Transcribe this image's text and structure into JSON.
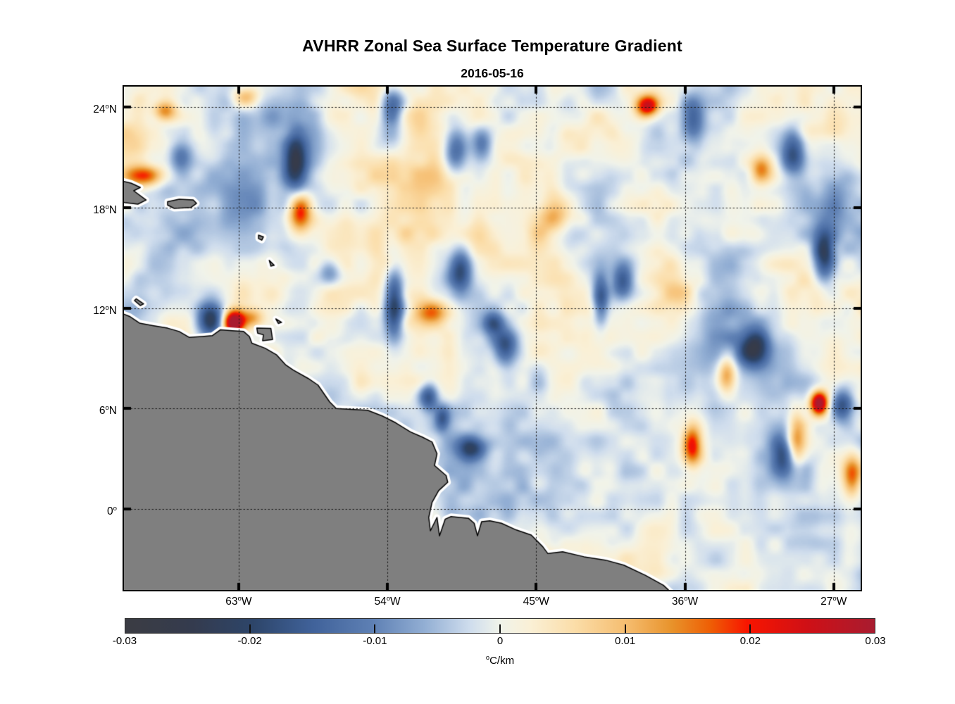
{
  "title": "AVHRR Zonal Sea Surface Temperature Gradient",
  "subtitle": "2016-05-16",
  "chart_data": {
    "type": "heatmap",
    "title": "AVHRR Zonal Sea Surface Temperature Gradient",
    "date": "2016-05-16",
    "variable": "zonal sea surface temperature gradient",
    "units": "°C/km",
    "lon_range": [
      -69.94,
      -25.37
    ],
    "lat_range": [
      25.22,
      -4.83
    ],
    "value_range": [
      -0.03,
      0.03
    ],
    "grid_style": "dotted",
    "x_ticks": [
      {
        "lon": -63,
        "label": "63",
        "hem": "W"
      },
      {
        "lon": -54,
        "label": "54",
        "hem": "W"
      },
      {
        "lon": -45,
        "label": "45",
        "hem": "W"
      },
      {
        "lon": -36,
        "label": "36",
        "hem": "W"
      },
      {
        "lon": -27,
        "label": "27",
        "hem": "W"
      }
    ],
    "y_ticks": [
      {
        "lat": 24,
        "label": "24",
        "hem": "N"
      },
      {
        "lat": 18,
        "label": "18",
        "hem": "N"
      },
      {
        "lat": 12,
        "label": "12",
        "hem": "N"
      },
      {
        "lat": 6,
        "label": "6",
        "hem": "N"
      },
      {
        "lat": 0,
        "label": "0",
        "hem": ""
      }
    ],
    "colorbar_ticks": [
      {
        "value": -0.03,
        "label": "-0.03"
      },
      {
        "value": -0.02,
        "label": "-0.02"
      },
      {
        "value": -0.01,
        "label": "-0.01"
      },
      {
        "value": 0,
        "label": "0"
      },
      {
        "value": 0.01,
        "label": "0.01"
      },
      {
        "value": 0.02,
        "label": "0.02"
      },
      {
        "value": 0.03,
        "label": "0.03"
      }
    ],
    "colorbar_units": {
      "sup": "o",
      "text": "C/km"
    },
    "colormap_stops": [
      [
        0.0,
        "#3b3c43"
      ],
      [
        0.09,
        "#343b4e"
      ],
      [
        0.17,
        "#2d4569"
      ],
      [
        0.25,
        "#40629a"
      ],
      [
        0.33,
        "#5e80b4"
      ],
      [
        0.4,
        "#93afd4"
      ],
      [
        0.46,
        "#cfdded"
      ],
      [
        0.5,
        "#f0f3ea"
      ],
      [
        0.54,
        "#faf0d6"
      ],
      [
        0.6,
        "#fbdda8"
      ],
      [
        0.67,
        "#f5bc6e"
      ],
      [
        0.73,
        "#e8922a"
      ],
      [
        0.78,
        "#ee5f05"
      ],
      [
        0.83,
        "#f81500"
      ],
      [
        0.91,
        "#cf1016"
      ],
      [
        1.0,
        "#a81c30"
      ]
    ],
    "land_color": "#7f7f7f",
    "coast_gap_color": "#ffffff",
    "coast_outline_color": "#000000",
    "seed": 20160516,
    "texture_octaves": [
      [
        170,
        0.0046
      ],
      [
        85,
        0.004
      ],
      [
        42,
        0.003
      ],
      [
        21,
        0.002
      ]
    ],
    "features": [
      {
        "lon": -63.3,
        "lat": 11.15,
        "sx": 0.45,
        "sy": 0.5,
        "amp": 0.035
      },
      {
        "lon": -64.7,
        "lat": 11.3,
        "sx": 0.55,
        "sy": 0.75,
        "amp": -0.024
      },
      {
        "lon": -62.2,
        "lat": 11.4,
        "sx": 0.5,
        "sy": 0.4,
        "amp": 0.012
      },
      {
        "lon": -53.6,
        "lat": 12.3,
        "sx": 0.42,
        "sy": 1.5,
        "amp": -0.021
      },
      {
        "lon": -51.4,
        "lat": 11.7,
        "sx": 0.7,
        "sy": 0.55,
        "amp": 0.014
      },
      {
        "lon": -49.6,
        "lat": 14.2,
        "sx": 0.5,
        "sy": 0.9,
        "amp": -0.018
      },
      {
        "lon": -46.9,
        "lat": 9.7,
        "sx": 0.55,
        "sy": 0.75,
        "amp": -0.017
      },
      {
        "lon": -47.6,
        "lat": 11.1,
        "sx": 0.45,
        "sy": 0.45,
        "amp": -0.013
      },
      {
        "lon": -48.9,
        "lat": 3.6,
        "sx": 0.65,
        "sy": 0.55,
        "amp": -0.021
      },
      {
        "lon": -51.5,
        "lat": 6.7,
        "sx": 0.4,
        "sy": 0.55,
        "amp": -0.017
      },
      {
        "lon": -50.7,
        "lat": 5.4,
        "sx": 0.3,
        "sy": 0.5,
        "amp": -0.012
      },
      {
        "lon": -41.1,
        "lat": 12.5,
        "sx": 0.33,
        "sy": 1.0,
        "amp": -0.016
      },
      {
        "lon": -39.8,
        "lat": 13.6,
        "sx": 0.45,
        "sy": 0.7,
        "amp": -0.014
      },
      {
        "lon": -59.3,
        "lat": 17.7,
        "sx": 0.5,
        "sy": 0.85,
        "amp": 0.022
      },
      {
        "lon": -59.6,
        "lat": 20.7,
        "sx": 0.45,
        "sy": 1.1,
        "amp": -0.018
      },
      {
        "lon": -62.6,
        "lat": 24.6,
        "sx": 0.6,
        "sy": 0.5,
        "amp": 0.015
      },
      {
        "lon": -68.9,
        "lat": 19.9,
        "sx": 0.8,
        "sy": 0.45,
        "amp": 0.02
      },
      {
        "lon": -53.7,
        "lat": 24.2,
        "sx": 0.5,
        "sy": 0.7,
        "amp": -0.015
      },
      {
        "lon": -53.8,
        "lat": 22.3,
        "sx": 0.6,
        "sy": 0.9,
        "amp": -0.01
      },
      {
        "lon": -49.9,
        "lat": 21.4,
        "sx": 0.55,
        "sy": 1.0,
        "amp": -0.018
      },
      {
        "lon": -48.3,
        "lat": 21.8,
        "sx": 0.45,
        "sy": 0.7,
        "amp": -0.012
      },
      {
        "lon": -38.3,
        "lat": 24.1,
        "sx": 0.5,
        "sy": 0.45,
        "amp": 0.027
      },
      {
        "lon": -35.6,
        "lat": 23.4,
        "sx": 0.5,
        "sy": 0.9,
        "amp": -0.015
      },
      {
        "lon": -29.5,
        "lat": 21.3,
        "sx": 0.5,
        "sy": 1.0,
        "amp": -0.019
      },
      {
        "lon": -31.4,
        "lat": 20.3,
        "sx": 0.45,
        "sy": 0.6,
        "amp": 0.015
      },
      {
        "lon": -27.6,
        "lat": 15.2,
        "sx": 0.45,
        "sy": 1.1,
        "amp": -0.021
      },
      {
        "lon": -31.8,
        "lat": 9.6,
        "sx": 0.6,
        "sy": 0.8,
        "amp": -0.02
      },
      {
        "lon": -33.5,
        "lat": 8.0,
        "sx": 0.4,
        "sy": 0.8,
        "amp": 0.015
      },
      {
        "lon": -27.9,
        "lat": 6.3,
        "sx": 0.38,
        "sy": 0.5,
        "amp": 0.032
      },
      {
        "lon": -26.5,
        "lat": 6.2,
        "sx": 0.5,
        "sy": 0.7,
        "amp": -0.019
      },
      {
        "lon": -35.6,
        "lat": 3.8,
        "sx": 0.4,
        "sy": 0.85,
        "amp": 0.021
      },
      {
        "lon": -30.1,
        "lat": 3.2,
        "sx": 0.5,
        "sy": 0.85,
        "amp": -0.015
      },
      {
        "lon": -29.3,
        "lat": 4.2,
        "sx": 0.4,
        "sy": 1.2,
        "amp": 0.015
      },
      {
        "lon": -25.9,
        "lat": 2.0,
        "sx": 0.4,
        "sy": 0.9,
        "amp": 0.017
      },
      {
        "lon": -57.5,
        "lat": 14.2,
        "sx": 0.5,
        "sy": 0.6,
        "amp": -0.012
      },
      {
        "lon": -66.5,
        "lat": 21.0,
        "sx": 0.5,
        "sy": 0.7,
        "amp": -0.012
      },
      {
        "lon": -67.5,
        "lat": 23.8,
        "sx": 0.5,
        "sy": 0.4,
        "amp": 0.013
      },
      {
        "lon": -44.0,
        "lat": 17.5,
        "sx": 0.8,
        "sy": 0.8,
        "amp": 0.009
      },
      {
        "lon": -36.5,
        "lat": 13.0,
        "sx": 0.9,
        "sy": 0.9,
        "amp": 0.008
      },
      {
        "lon": -60.0,
        "lat": 22.0,
        "sx": 4.0,
        "sy": 3.0,
        "amp": -0.003
      },
      {
        "lon": -33.0,
        "lat": 2.0,
        "sx": 5.0,
        "sy": 3.0,
        "amp": 0.0025
      },
      {
        "lon": -44.0,
        "lat": 8.0,
        "sx": 4.0,
        "sy": 3.0,
        "amp": 0.002
      }
    ],
    "land_polygons": [
      {
        "name": "south-america-mainland",
        "pts": [
          [
            -70.5,
            11.85
          ],
          [
            -69.6,
            11.5
          ],
          [
            -69.0,
            11.1
          ],
          [
            -68.2,
            10.95
          ],
          [
            -67.3,
            10.8
          ],
          [
            -66.6,
            10.6
          ],
          [
            -66.0,
            10.25
          ],
          [
            -65.2,
            10.3
          ],
          [
            -64.6,
            10.35
          ],
          [
            -64.1,
            10.7
          ],
          [
            -63.4,
            10.65
          ],
          [
            -62.7,
            10.6
          ],
          [
            -62.35,
            10.3
          ],
          [
            -62.2,
            9.9
          ],
          [
            -61.4,
            9.6
          ],
          [
            -60.7,
            9.2
          ],
          [
            -60.15,
            8.6
          ],
          [
            -59.7,
            8.3
          ],
          [
            -58.8,
            7.8
          ],
          [
            -58.2,
            7.4
          ],
          [
            -57.5,
            6.4
          ],
          [
            -57.1,
            6.0
          ],
          [
            -56.2,
            5.95
          ],
          [
            -55.2,
            5.9
          ],
          [
            -54.3,
            5.55
          ],
          [
            -53.5,
            5.15
          ],
          [
            -52.6,
            4.6
          ],
          [
            -51.9,
            4.3
          ],
          [
            -51.3,
            4.0
          ],
          [
            -51.0,
            3.3
          ],
          [
            -51.15,
            2.6
          ],
          [
            -50.45,
            2.0
          ],
          [
            -50.35,
            1.6
          ],
          [
            -50.9,
            1.1
          ],
          [
            -51.3,
            0.4
          ],
          [
            -51.5,
            -0.5
          ],
          [
            -51.4,
            -1.3
          ],
          [
            -51.0,
            -0.5
          ],
          [
            -50.85,
            -1.6
          ],
          [
            -50.5,
            -0.6
          ],
          [
            -50.15,
            -0.45
          ],
          [
            -49.1,
            -0.55
          ],
          [
            -48.75,
            -0.85
          ],
          [
            -48.55,
            -1.6
          ],
          [
            -48.3,
            -0.75
          ],
          [
            -47.8,
            -0.7
          ],
          [
            -47.1,
            -0.85
          ],
          [
            -46.2,
            -1.25
          ],
          [
            -45.3,
            -1.55
          ],
          [
            -44.6,
            -2.25
          ],
          [
            -44.3,
            -2.65
          ],
          [
            -43.4,
            -2.55
          ],
          [
            -42.1,
            -2.85
          ],
          [
            -40.8,
            -3.05
          ],
          [
            -39.7,
            -3.35
          ],
          [
            -38.4,
            -3.95
          ],
          [
            -37.3,
            -4.55
          ],
          [
            -36.6,
            -5.2
          ],
          [
            -71.0,
            -5.4
          ]
        ]
      },
      {
        "name": "hispaniola-east",
        "pts": [
          [
            -70.5,
            19.7
          ],
          [
            -69.5,
            19.45
          ],
          [
            -68.95,
            19.2
          ],
          [
            -69.35,
            19.0
          ],
          [
            -68.6,
            18.45
          ],
          [
            -69.1,
            18.2
          ],
          [
            -69.9,
            18.3
          ],
          [
            -70.5,
            18.4
          ]
        ]
      },
      {
        "name": "puerto-rico",
        "pts": [
          [
            -67.3,
            18.35
          ],
          [
            -66.6,
            18.5
          ],
          [
            -65.75,
            18.45
          ],
          [
            -65.55,
            18.25
          ],
          [
            -65.9,
            18.0
          ],
          [
            -66.9,
            17.95
          ],
          [
            -67.3,
            18.15
          ]
        ]
      },
      {
        "name": "guadeloupe",
        "pts": [
          [
            -61.8,
            16.35
          ],
          [
            -61.5,
            16.25
          ],
          [
            -61.6,
            16.05
          ],
          [
            -61.8,
            16.15
          ]
        ]
      },
      {
        "name": "martinique",
        "pts": [
          [
            -61.15,
            14.85
          ],
          [
            -60.85,
            14.55
          ],
          [
            -61.05,
            14.5
          ]
        ]
      },
      {
        "name": "curacao",
        "pts": [
          [
            -69.2,
            12.55
          ],
          [
            -68.75,
            12.25
          ],
          [
            -68.95,
            12.15
          ],
          [
            -69.3,
            12.45
          ]
        ]
      },
      {
        "name": "trinidad",
        "pts": [
          [
            -61.9,
            10.8
          ],
          [
            -61.05,
            10.78
          ],
          [
            -60.95,
            10.12
          ],
          [
            -61.55,
            10.05
          ],
          [
            -61.5,
            10.4
          ],
          [
            -61.85,
            10.5
          ]
        ]
      },
      {
        "name": "tobago",
        "pts": [
          [
            -60.75,
            11.35
          ],
          [
            -60.4,
            11.15
          ],
          [
            -60.6,
            11.08
          ]
        ]
      }
    ]
  }
}
